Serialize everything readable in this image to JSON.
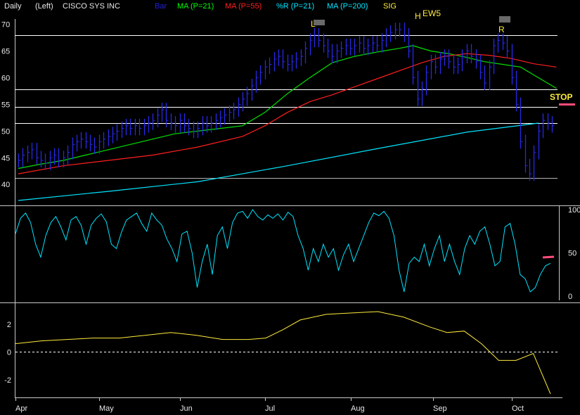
{
  "header": {
    "period": "Daily",
    "scale_side": "(Left)",
    "security": "CISCO SYS INC",
    "legend": [
      {
        "label": "Bar",
        "color": "#2020e0"
      },
      {
        "label": "MA (P=21)",
        "color": "#00ff00"
      },
      {
        "label": "MA (P=55)",
        "color": "#ff1f1f"
      },
      {
        "label": "%R (P=21)",
        "color": "#00e5ff"
      },
      {
        "label": "MA (P=200)",
        "color": "#00e5ff"
      },
      {
        "label": "SIG",
        "color": "#ffeb3b"
      }
    ]
  },
  "annotations": {
    "L": "L",
    "H": "H",
    "EW5": "EW5",
    "R": "R",
    "STOP": "STOP"
  },
  "colors": {
    "background": "#000000",
    "bar": "#2828e8",
    "ma21": "#00e000",
    "ma55": "#ff1f1f",
    "ma200": "#00e5ff",
    "pctR": "#00e5ff",
    "sig": "#ffeb3b",
    "hlines": "#ffffff",
    "stop_marker": "#ff4d7a"
  },
  "chart_data": [
    {
      "type": "line",
      "panel": "price",
      "ylim": [
        37,
        71
      ],
      "yticks": [
        "70",
        "65",
        "60",
        "55",
        "50",
        "45",
        "40"
      ],
      "x_months": [
        "Apr",
        "May",
        "Jun",
        "Jul",
        "Aug",
        "Sep",
        "Oct"
      ],
      "horizontal_levels": [
        68,
        57.8,
        54.5,
        51.5,
        41.2
      ],
      "bars_close": [
        44.5,
        45.5,
        46,
        46.5,
        45,
        44.5,
        44,
        45,
        45.5,
        44.5,
        45,
        46,
        47.5,
        48,
        48.5,
        48,
        47.5,
        47,
        48,
        48.5,
        49,
        49.5,
        50,
        50.5,
        51,
        50.5,
        51,
        50.5,
        51,
        51.5,
        52,
        53,
        54,
        52,
        51.5,
        51,
        52,
        51,
        50.5,
        50,
        50.5,
        51.5,
        51,
        51.5,
        52,
        52.5,
        53,
        53.5,
        54,
        55,
        56,
        57,
        58.5,
        60,
        61,
        62,
        62.5,
        63.5,
        64,
        63,
        62.5,
        63,
        63.5,
        64,
        65.5,
        67,
        68,
        67,
        66,
        65,
        64,
        65,
        65.5,
        66,
        65.5,
        66,
        66.5,
        65.5,
        66,
        66.5,
        66,
        67,
        68,
        68.5,
        69,
        69,
        68,
        65,
        60,
        56,
        58,
        61,
        63,
        62,
        63.5,
        64,
        63,
        62,
        62.5,
        64,
        65,
        64,
        63,
        61,
        59,
        62,
        66,
        67,
        66.5,
        65,
        60,
        55,
        48,
        43.5,
        42,
        46,
        50,
        52,
        51.5,
        51
      ],
      "series": [
        {
          "name": "MA (P=21)",
          "key": "ma21",
          "x": [
            0,
            5,
            10,
            15,
            20,
            25,
            30,
            35,
            40,
            45,
            50,
            55,
            60,
            65,
            70,
            75,
            80,
            85,
            88,
            92,
            96,
            100,
            104,
            108,
            112,
            116,
            120
          ],
          "values": [
            43,
            43.8,
            44.5,
            45.5,
            46.5,
            47.5,
            48.5,
            49.5,
            50,
            50.5,
            51,
            53.5,
            57,
            60,
            62.8,
            64,
            64.8,
            65.5,
            66,
            65,
            64.5,
            63.8,
            63,
            62.5,
            62,
            60,
            58
          ]
        },
        {
          "name": "MA (P=55)",
          "key": "ma55",
          "x": [
            0,
            10,
            20,
            30,
            40,
            50,
            55,
            60,
            65,
            70,
            75,
            80,
            85,
            90,
            95,
            100,
            105,
            110,
            115,
            120
          ],
          "values": [
            42,
            43.5,
            44.5,
            45.5,
            47,
            49,
            51,
            53.5,
            55.5,
            56.8,
            58.3,
            59.8,
            61.3,
            62.8,
            64,
            64.5,
            64.2,
            63.6,
            62.6,
            62
          ]
        },
        {
          "name": "MA (P=200)",
          "key": "ma200",
          "x": [
            0,
            20,
            40,
            60,
            80,
            100,
            116
          ],
          "values": [
            37,
            38.7,
            40.5,
            43.5,
            46.7,
            49.8,
            51.5
          ]
        }
      ]
    },
    {
      "type": "line",
      "panel": "percent_r",
      "name": "%R (P=21)",
      "ylim": [
        0,
        100
      ],
      "yticks": [
        "100",
        "50",
        "0"
      ],
      "stop_marker_value": 47,
      "values": [
        72,
        90,
        96,
        85,
        60,
        45,
        70,
        85,
        92,
        80,
        65,
        88,
        92,
        82,
        60,
        82,
        90,
        95,
        86,
        60,
        55,
        74,
        88,
        92,
        96,
        84,
        75,
        96,
        88,
        82,
        66,
        55,
        40,
        72,
        75,
        50,
        10,
        40,
        60,
        25,
        70,
        80,
        55,
        85,
        96,
        98,
        90,
        100,
        92,
        88,
        94,
        90,
        95,
        88,
        97,
        92,
        70,
        55,
        30,
        55,
        40,
        60,
        45,
        55,
        30,
        48,
        60,
        40,
        55,
        70,
        85,
        96,
        93,
        98,
        90,
        70,
        30,
        5,
        38,
        45,
        40,
        60,
        35,
        55,
        70,
        40,
        60,
        40,
        25,
        55,
        70,
        60,
        75,
        80,
        60,
        35,
        40,
        80,
        84,
        60,
        25,
        20,
        5,
        10,
        25,
        35,
        38
      ]
    },
    {
      "type": "line",
      "panel": "signal",
      "name": "SIG",
      "ylim": [
        -3,
        3.2
      ],
      "yticks": [
        "2",
        "0",
        "-2"
      ],
      "x": [
        0,
        6,
        12,
        18,
        24,
        30,
        36,
        42,
        48,
        54,
        58,
        62,
        66,
        72,
        78,
        84,
        90,
        96,
        100,
        104,
        108,
        112,
        116,
        120,
        124
      ],
      "values": [
        0.6,
        0.8,
        0.9,
        1.0,
        1.0,
        1.2,
        1.4,
        1.2,
        0.9,
        0.9,
        1.0,
        1.6,
        2.3,
        2.7,
        2.8,
        2.9,
        2.5,
        1.8,
        1.4,
        1.5,
        0.6,
        -0.6,
        -0.6,
        -0.1,
        -3.0
      ]
    }
  ]
}
